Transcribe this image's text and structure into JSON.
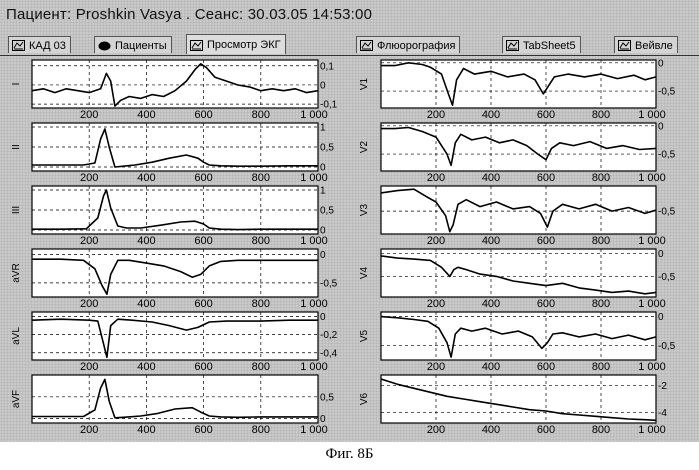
{
  "window": {
    "title": "Пациент: Proshkin Vasya . Сеанс: 30.03.05 14:53:00"
  },
  "tabs": [
    {
      "label": "КАД 03",
      "icon": "chart-icon",
      "active": false
    },
    {
      "label": "Пациенты",
      "icon": "blob-icon",
      "active": false
    },
    {
      "label": "Просмотр ЭКГ",
      "icon": "chart-icon",
      "active": true
    },
    {
      "label": "Флюорография",
      "icon": "chart-icon",
      "active": false
    },
    {
      "label": "TabSheet5",
      "icon": "chart-icon",
      "active": false
    },
    {
      "label": "Вейвле",
      "icon": "chart-icon",
      "active": false
    }
  ],
  "caption": "Фиг. 8Б",
  "chart_data": [
    {
      "type": "line",
      "lead": "I",
      "x_ticks": [
        "200",
        "400",
        "600",
        "800",
        "1 000"
      ],
      "y_ticks": [
        "0,1",
        "0",
        "-0,1"
      ],
      "xlim": [
        0,
        1000
      ],
      "ylim": [
        -0.12,
        0.13
      ],
      "x": [
        0,
        40,
        80,
        120,
        160,
        200,
        240,
        260,
        275,
        290,
        310,
        340,
        380,
        420,
        460,
        500,
        540,
        570,
        590,
        610,
        640,
        680,
        720,
        760,
        800,
        840,
        880,
        920,
        960,
        1000
      ],
      "y": [
        -0.03,
        -0.02,
        -0.04,
        -0.02,
        -0.03,
        -0.04,
        -0.02,
        0.06,
        0.02,
        -0.11,
        -0.08,
        -0.06,
        -0.07,
        -0.05,
        -0.06,
        -0.03,
        0.02,
        0.08,
        0.11,
        0.09,
        0.04,
        0.02,
        0.0,
        -0.01,
        -0.03,
        -0.02,
        -0.03,
        -0.02,
        -0.04,
        -0.03
      ]
    },
    {
      "type": "line",
      "lead": "II",
      "x_ticks": [
        "200",
        "400",
        "600",
        "800",
        "1 000"
      ],
      "y_ticks": [
        "1",
        "0,5",
        "0"
      ],
      "xlim": [
        0,
        1000
      ],
      "ylim": [
        -0.1,
        1.1
      ],
      "x": [
        0,
        100,
        180,
        220,
        240,
        255,
        270,
        290,
        320,
        360,
        420,
        480,
        540,
        580,
        600,
        620,
        660,
        720,
        800,
        900,
        1000
      ],
      "y": [
        0.05,
        0.05,
        0.05,
        0.1,
        0.7,
        0.95,
        0.5,
        0.0,
        0.02,
        0.05,
        0.12,
        0.22,
        0.3,
        0.22,
        0.12,
        0.05,
        0.03,
        0.02,
        0.02,
        0.03,
        0.03
      ]
    },
    {
      "type": "line",
      "lead": "III",
      "x_ticks": [
        "200",
        "400",
        "600",
        "800",
        "1 000"
      ],
      "y_ticks": [
        "1",
        "0,5",
        "0"
      ],
      "xlim": [
        0,
        1000
      ],
      "ylim": [
        -0.1,
        1.1
      ],
      "x": [
        0,
        100,
        190,
        230,
        250,
        260,
        275,
        300,
        330,
        380,
        450,
        520,
        570,
        600,
        620,
        660,
        720,
        800,
        900,
        1000
      ],
      "y": [
        0.02,
        0.02,
        0.03,
        0.3,
        0.85,
        1.0,
        0.55,
        0.1,
        0.05,
        0.05,
        0.12,
        0.2,
        0.22,
        0.15,
        0.05,
        0.02,
        0.01,
        0.02,
        0.02,
        0.02
      ]
    },
    {
      "type": "line",
      "lead": "aVR",
      "x_ticks": [
        "200",
        "400",
        "600",
        "800",
        "1 000"
      ],
      "y_ticks": [
        "0",
        "-0,5"
      ],
      "xlim": [
        0,
        1000
      ],
      "ylim": [
        -0.75,
        0.1
      ],
      "x": [
        0,
        100,
        180,
        220,
        245,
        262,
        275,
        300,
        340,
        400,
        460,
        520,
        560,
        590,
        620,
        660,
        720,
        800,
        900,
        1000
      ],
      "y": [
        -0.08,
        -0.08,
        -0.1,
        -0.25,
        -0.55,
        -0.7,
        -0.35,
        -0.1,
        -0.1,
        -0.15,
        -0.2,
        -0.3,
        -0.4,
        -0.35,
        -0.2,
        -0.12,
        -0.1,
        -0.1,
        -0.1,
        -0.1
      ]
    },
    {
      "type": "line",
      "lead": "aVL",
      "x_ticks": [
        "200",
        "400",
        "600",
        "800",
        "1 000"
      ],
      "y_ticks": [
        "0",
        "-0,2",
        "-0,4"
      ],
      "xlim": [
        0,
        1000
      ],
      "ylim": [
        -0.48,
        0.05
      ],
      "x": [
        0,
        100,
        200,
        230,
        250,
        262,
        275,
        300,
        350,
        420,
        480,
        540,
        580,
        620,
        680,
        750,
        800,
        900,
        1000
      ],
      "y": [
        -0.04,
        -0.03,
        -0.04,
        -0.05,
        -0.3,
        -0.45,
        -0.1,
        -0.03,
        -0.04,
        -0.06,
        -0.1,
        -0.15,
        -0.12,
        -0.06,
        -0.05,
        -0.05,
        -0.05,
        -0.04,
        -0.04
      ]
    },
    {
      "type": "line",
      "lead": "aVF",
      "x_ticks": [
        "200",
        "400",
        "600",
        "800",
        "1 000"
      ],
      "y_ticks": [
        "0,5",
        "0"
      ],
      "xlim": [
        0,
        1000
      ],
      "ylim": [
        -0.1,
        1.0
      ],
      "x": [
        0,
        100,
        180,
        220,
        240,
        255,
        270,
        290,
        320,
        380,
        440,
        500,
        560,
        590,
        620,
        660,
        720,
        800,
        900,
        1000
      ],
      "y": [
        0.05,
        0.05,
        0.05,
        0.2,
        0.7,
        0.9,
        0.4,
        0.02,
        0.03,
        0.06,
        0.12,
        0.22,
        0.25,
        0.15,
        0.06,
        0.04,
        0.03,
        0.04,
        0.04,
        0.04
      ]
    },
    {
      "type": "line",
      "lead": "V1",
      "x_ticks": [
        "200",
        "400",
        "600",
        "800",
        "1 000"
      ],
      "y_ticks": [
        "0",
        "-0,5"
      ],
      "xlim": [
        0,
        1000
      ],
      "ylim": [
        -0.8,
        0.05
      ],
      "x": [
        0,
        50,
        100,
        150,
        180,
        220,
        245,
        260,
        275,
        300,
        340,
        400,
        460,
        520,
        560,
        590,
        610,
        630,
        680,
        740,
        800,
        860,
        920,
        960,
        1000
      ],
      "y": [
        -0.05,
        -0.05,
        0.0,
        -0.03,
        -0.08,
        -0.2,
        -0.55,
        -0.75,
        -0.3,
        -0.1,
        -0.2,
        -0.15,
        -0.25,
        -0.2,
        -0.3,
        -0.55,
        -0.4,
        -0.25,
        -0.2,
        -0.25,
        -0.2,
        -0.28,
        -0.22,
        -0.3,
        -0.25
      ]
    },
    {
      "type": "line",
      "lead": "V2",
      "x_ticks": [
        "200",
        "400",
        "600",
        "800",
        "1 000"
      ],
      "y_ticks": [
        "0",
        "-0,5"
      ],
      "xlim": [
        0,
        1000
      ],
      "ylim": [
        -0.8,
        0.05
      ],
      "x": [
        0,
        50,
        100,
        150,
        200,
        240,
        255,
        270,
        290,
        330,
        380,
        430,
        480,
        530,
        570,
        600,
        620,
        650,
        700,
        760,
        820,
        880,
        940,
        1000
      ],
      "y": [
        -0.05,
        -0.05,
        -0.03,
        -0.1,
        -0.2,
        -0.5,
        -0.7,
        -0.3,
        -0.15,
        -0.25,
        -0.2,
        -0.3,
        -0.25,
        -0.35,
        -0.5,
        -0.6,
        -0.4,
        -0.3,
        -0.35,
        -0.28,
        -0.4,
        -0.35,
        -0.42,
        -0.4
      ]
    },
    {
      "type": "line",
      "lead": "V3",
      "x_ticks": [
        "200",
        "400",
        "600",
        "800",
        "1 000"
      ],
      "y_ticks": [
        "-0,5"
      ],
      "xlim": [
        0,
        1000
      ],
      "ylim": [
        -1.0,
        0.05
      ],
      "x": [
        0,
        60,
        120,
        170,
        200,
        235,
        250,
        262,
        280,
        310,
        360,
        420,
        480,
        540,
        580,
        605,
        625,
        660,
        720,
        780,
        840,
        900,
        960,
        1000
      ],
      "y": [
        -0.1,
        -0.05,
        -0.02,
        -0.2,
        -0.3,
        -0.6,
        -0.95,
        -0.8,
        -0.35,
        -0.25,
        -0.4,
        -0.3,
        -0.45,
        -0.4,
        -0.55,
        -0.85,
        -0.5,
        -0.35,
        -0.45,
        -0.35,
        -0.5,
        -0.42,
        -0.55,
        -0.48
      ]
    },
    {
      "type": "line",
      "lead": "V4",
      "x_ticks": [
        "200",
        "400",
        "600",
        "800",
        "1 000"
      ],
      "y_ticks": [
        "0",
        "-0,5"
      ],
      "xlim": [
        0,
        1000
      ],
      "ylim": [
        -0.95,
        0.1
      ],
      "x": [
        0,
        60,
        120,
        180,
        220,
        250,
        265,
        280,
        310,
        360,
        420,
        480,
        540,
        600,
        660,
        720,
        780,
        840,
        900,
        960,
        1000
      ],
      "y": [
        -0.05,
        -0.1,
        -0.12,
        -0.15,
        -0.3,
        -0.5,
        -0.35,
        -0.3,
        -0.35,
        -0.45,
        -0.5,
        -0.6,
        -0.65,
        -0.7,
        -0.65,
        -0.75,
        -0.8,
        -0.85,
        -0.82,
        -0.88,
        -0.85
      ]
    },
    {
      "type": "line",
      "lead": "V5",
      "x_ticks": [
        "200",
        "400",
        "600",
        "800",
        "1 000"
      ],
      "y_ticks": [
        "0",
        "-0,5"
      ],
      "xlim": [
        0,
        1000
      ],
      "ylim": [
        -0.75,
        0.08
      ],
      "x": [
        0,
        60,
        120,
        170,
        210,
        240,
        255,
        270,
        290,
        330,
        380,
        440,
        500,
        550,
        585,
        605,
        625,
        660,
        720,
        780,
        840,
        900,
        960,
        1000
      ],
      "y": [
        0.0,
        -0.02,
        -0.05,
        -0.08,
        -0.2,
        -0.45,
        -0.7,
        -0.3,
        -0.2,
        -0.25,
        -0.2,
        -0.3,
        -0.25,
        -0.35,
        -0.55,
        -0.45,
        -0.3,
        -0.28,
        -0.35,
        -0.3,
        -0.38,
        -0.32,
        -0.4,
        -0.35
      ]
    },
    {
      "type": "line",
      "lead": "V6",
      "x_ticks": [
        "200",
        "400",
        "600",
        "800",
        "1 000"
      ],
      "y_ticks": [
        "-2",
        "-4"
      ],
      "xlim": [
        0,
        1000
      ],
      "ylim": [
        -4.8,
        -1.2
      ],
      "x": [
        0,
        60,
        120,
        180,
        240,
        300,
        360,
        420,
        480,
        540,
        600,
        660,
        720,
        780,
        840,
        900,
        960,
        1000
      ],
      "y": [
        -1.5,
        -1.9,
        -2.2,
        -2.5,
        -2.8,
        -3.0,
        -3.2,
        -3.4,
        -3.6,
        -3.8,
        -3.9,
        -4.1,
        -4.2,
        -4.3,
        -4.4,
        -4.5,
        -4.55,
        -4.6
      ]
    }
  ]
}
